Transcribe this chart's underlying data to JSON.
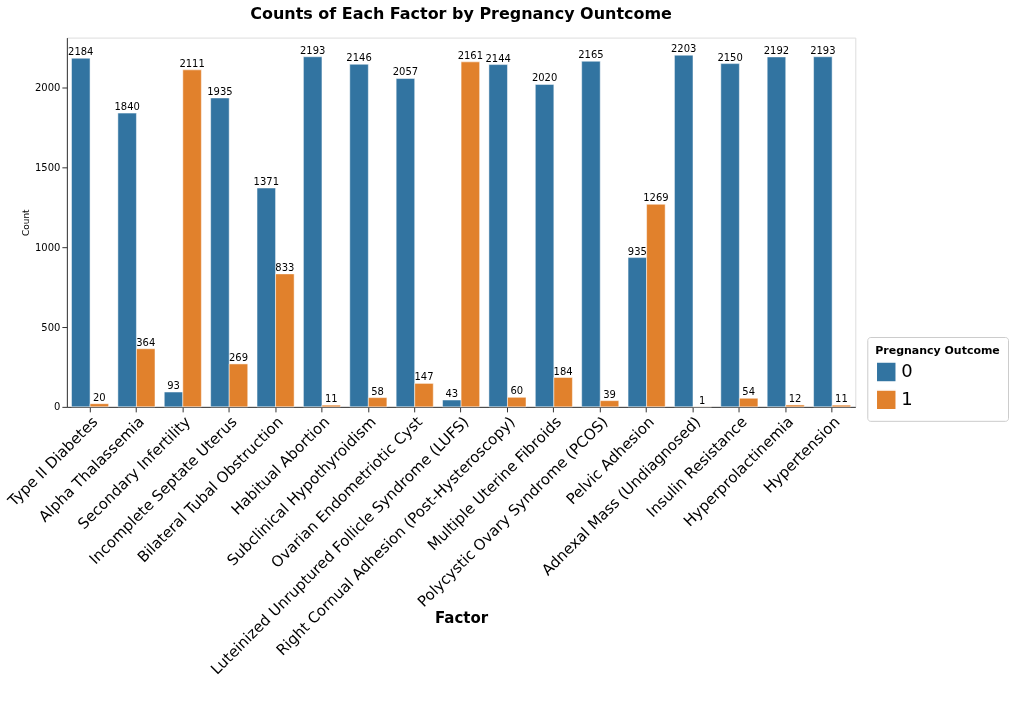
{
  "chart_data": {
    "type": "bar",
    "title": "Counts of Each Factor by Pregnancy Ountcome",
    "xlabel": "Factor",
    "ylabel": "Count",
    "legend_title": "Pregnancy Outcome",
    "categories": [
      "Type II Diabetes",
      "Alpha Thalassemia",
      "Secondary Infertility",
      "Incomplete Septate Uterus",
      "Bilateral Tubal Obstruction",
      "Habitual Abortion",
      "Subclinical Hypothyroidism",
      "Ovarian Endometriotic Cyst",
      "Luteinized Unruptured Follicle Syndrome (LUFS)",
      "Right Cornual Adhesion (Post-Hysteroscopy)",
      "Multiple Uterine Fibroids",
      "Polycystic Ovary Syndrome (PCOS)",
      "Pelvic Adhesion",
      "Adnexal Mass (Undiagnosed)",
      "Insulin Resistance",
      "Hyperprolactinemia",
      "Hypertension"
    ],
    "series": [
      {
        "name": "0",
        "color": "#3274a1",
        "values": [
          2184,
          1840,
          93,
          1935,
          1371,
          2193,
          2146,
          2057,
          43,
          2144,
          2020,
          2165,
          935,
          2203,
          2150,
          2192,
          2193
        ]
      },
      {
        "name": "1",
        "color": "#e1812c",
        "values": [
          20,
          364,
          2111,
          269,
          833,
          11,
          58,
          147,
          2161,
          60,
          184,
          39,
          1269,
          1,
          54,
          12,
          11
        ]
      }
    ],
    "ylim": [
      0,
      2313
    ],
    "yticks": [
      0,
      500,
      1000,
      1500,
      2000
    ],
    "data_labels": true,
    "grid": false,
    "legend": "bottom right"
  }
}
